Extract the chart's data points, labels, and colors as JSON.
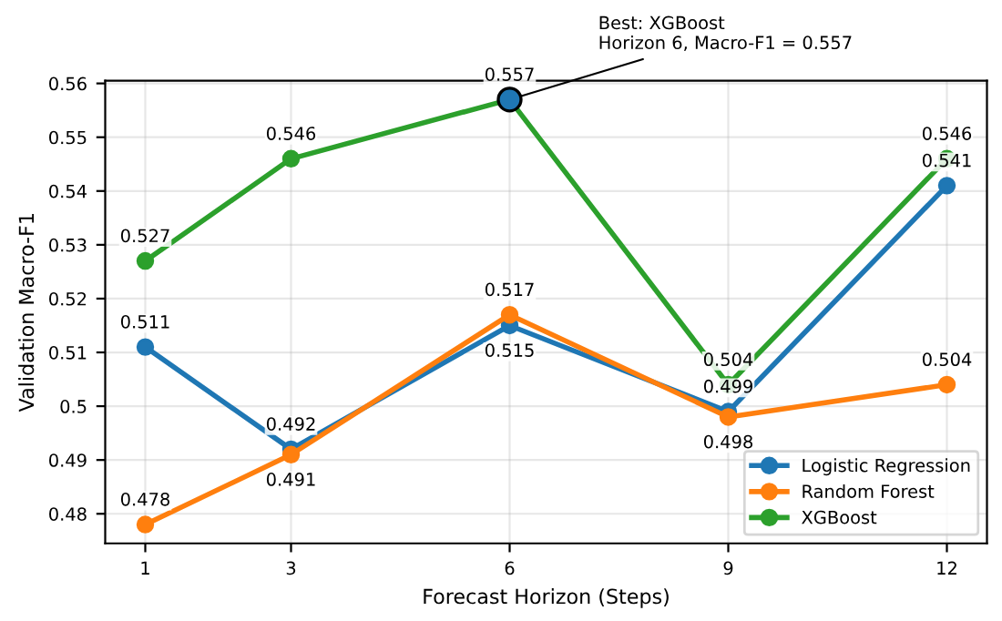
{
  "chart_data": {
    "type": "line",
    "xlabel": "Forecast Horizon (Steps)",
    "ylabel": "Validation Macro-F1",
    "x": [
      1,
      3,
      6,
      9,
      12
    ],
    "xlim": [
      0.45,
      12.55
    ],
    "xticks": [
      1,
      3,
      6,
      9,
      12
    ],
    "ylim": [
      0.4745,
      0.5605
    ],
    "yticks": [
      0.48,
      0.49,
      0.5,
      0.51,
      0.52,
      0.53,
      0.54,
      0.55,
      0.56
    ],
    "series": [
      {
        "name": "Logistic Regression",
        "color": "#1f77b4",
        "values": [
          0.511,
          0.492,
          0.515,
          0.499,
          0.541
        ],
        "value_labels": [
          "0.511",
          "0.492",
          "0.515",
          "0.499",
          "0.541"
        ]
      },
      {
        "name": "Random Forest",
        "color": "#ff7f0e",
        "values": [
          0.478,
          0.491,
          0.517,
          0.498,
          0.504
        ],
        "value_labels": [
          "0.478",
          "0.491",
          "0.517",
          "0.498",
          "0.504"
        ]
      },
      {
        "name": "XGBoost",
        "color": "#2ca02c",
        "values": [
          0.527,
          0.546,
          0.557,
          0.504,
          0.546
        ],
        "value_labels": [
          "0.527",
          "0.546",
          "0.557",
          "0.504",
          "0.546"
        ]
      }
    ],
    "annotations": [
      {
        "text": "Best: XGBoost\nHorizon 6, Macro-F1 = 0.557",
        "x": 6,
        "y": 0.557
      }
    ],
    "marker": "circle",
    "line_style": "solid",
    "grid": true,
    "legend": "bottom right"
  }
}
